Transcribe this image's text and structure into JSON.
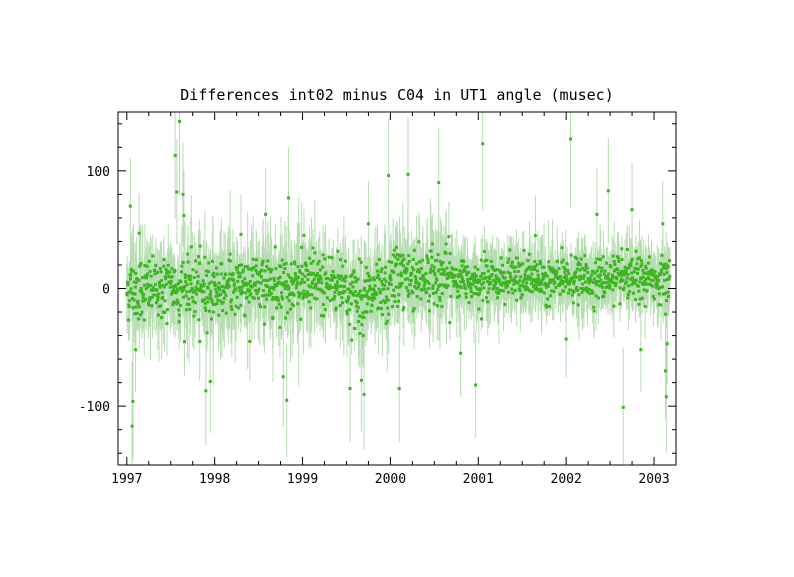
{
  "chart_data": {
    "type": "scatter",
    "title": "Differences int02 minus C04 in UT1 angle   (musec)",
    "xlabel": "",
    "ylabel": "",
    "xlim": [
      1996.9,
      2003.25
    ],
    "ylim": [
      -150,
      150
    ],
    "x_ticks": [
      "1997",
      "1998",
      "1999",
      "2000",
      "2001",
      "2002",
      "2003"
    ],
    "x_tick_values": [
      1997,
      1998,
      1999,
      2000,
      2001,
      2002,
      2003
    ],
    "y_ticks": [
      "-100",
      "0",
      "100"
    ],
    "y_tick_values": [
      -100,
      0,
      100
    ],
    "grid": false,
    "legend": "none",
    "colors": {
      "points": "#3cb521",
      "error_bars": "#b5ddb0",
      "axes": "#000000"
    },
    "outliers": [
      {
        "x": 1997.04,
        "y": 70
      },
      {
        "x": 1997.06,
        "y": -117
      },
      {
        "x": 1997.07,
        "y": -96
      },
      {
        "x": 1997.1,
        "y": -52
      },
      {
        "x": 1997.14,
        "y": 47
      },
      {
        "x": 1997.55,
        "y": 113
      },
      {
        "x": 1997.57,
        "y": 82
      },
      {
        "x": 1997.6,
        "y": 142
      },
      {
        "x": 1997.64,
        "y": 80
      },
      {
        "x": 1997.65,
        "y": 62
      },
      {
        "x": 1997.83,
        "y": -45
      },
      {
        "x": 1997.9,
        "y": -87
      },
      {
        "x": 1997.95,
        "y": -79
      },
      {
        "x": 1998.3,
        "y": 46
      },
      {
        "x": 1998.4,
        "y": -45
      },
      {
        "x": 1998.58,
        "y": 63
      },
      {
        "x": 1998.78,
        "y": -75
      },
      {
        "x": 1998.82,
        "y": -95
      },
      {
        "x": 1998.84,
        "y": 77
      },
      {
        "x": 1999.54,
        "y": -85
      },
      {
        "x": 1999.67,
        "y": -78
      },
      {
        "x": 1999.7,
        "y": -90
      },
      {
        "x": 1999.75,
        "y": 55
      },
      {
        "x": 1999.98,
        "y": 96
      },
      {
        "x": 2000.1,
        "y": -85
      },
      {
        "x": 2000.2,
        "y": 97
      },
      {
        "x": 2000.55,
        "y": 90
      },
      {
        "x": 2000.8,
        "y": -55
      },
      {
        "x": 2000.97,
        "y": -82
      },
      {
        "x": 2001.05,
        "y": 123
      },
      {
        "x": 2001.65,
        "y": 45
      },
      {
        "x": 2002.0,
        "y": -43
      },
      {
        "x": 2002.05,
        "y": 127
      },
      {
        "x": 2002.35,
        "y": 63
      },
      {
        "x": 2002.48,
        "y": 83
      },
      {
        "x": 2002.65,
        "y": -101
      },
      {
        "x": 2002.75,
        "y": 67
      },
      {
        "x": 2002.85,
        "y": -52
      },
      {
        "x": 2003.1,
        "y": 55
      },
      {
        "x": 2003.13,
        "y": -70
      },
      {
        "x": 2003.14,
        "y": -92
      },
      {
        "x": 2003.15,
        "y": -47
      }
    ]
  }
}
